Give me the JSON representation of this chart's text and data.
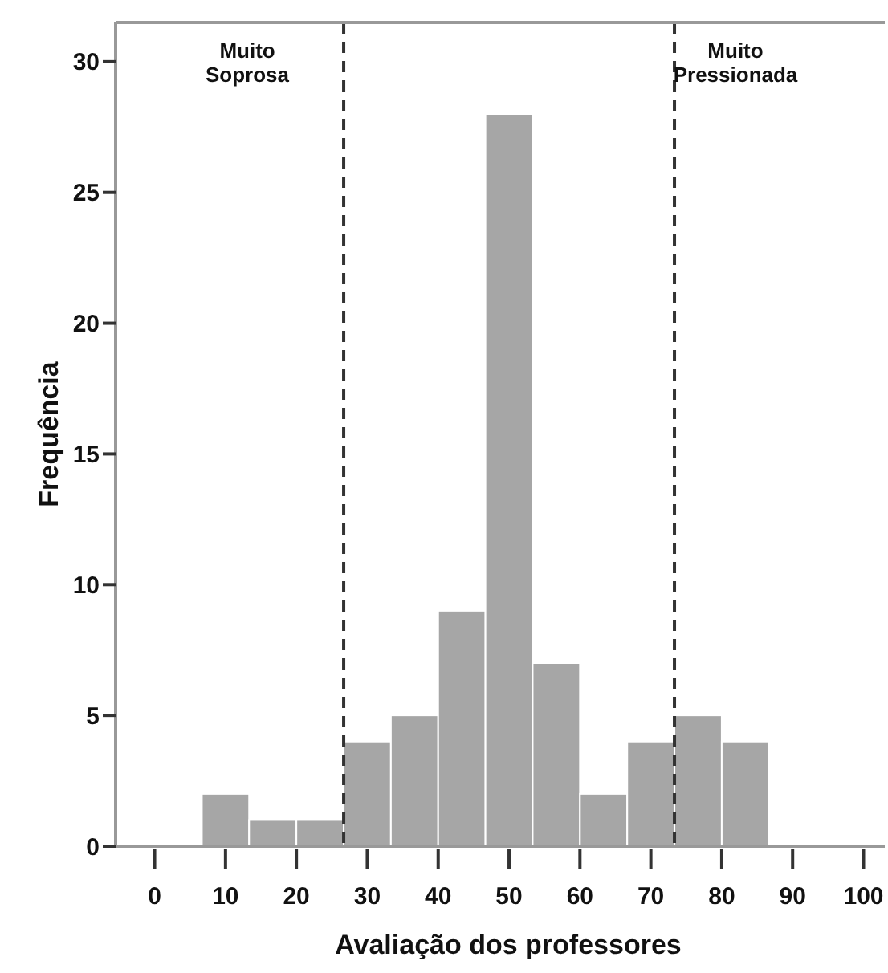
{
  "chart_data": {
    "type": "histogram",
    "xlabel": "Avaliação dos professores",
    "ylabel": "Frequência",
    "bins": [
      6.67,
      13.33,
      20,
      26.67,
      33.33,
      40,
      46.67,
      53.33,
      60,
      66.67,
      73.33,
      80,
      86.67
    ],
    "values": [
      2,
      1,
      1,
      4,
      5,
      9,
      28,
      7,
      2,
      4,
      5,
      4
    ],
    "color": "#a6a6a6",
    "xlim": [
      -5.5,
      103
    ],
    "xticks": [
      0,
      10,
      20,
      30,
      40,
      50,
      60,
      70,
      80,
      90,
      100
    ],
    "ylim": [
      0,
      31.5
    ],
    "yticks": [
      0,
      5,
      10,
      15,
      20,
      25,
      30
    ],
    "grid": false,
    "ref_lines": [
      {
        "axis": "x",
        "value": 26.67,
        "line_style": "dashed",
        "color": "#333333"
      },
      {
        "axis": "x",
        "value": 73.33,
        "line_style": "dashed",
        "color": "#333333"
      }
    ],
    "annotations": [
      "Muito Soprosa",
      "Muito Pressionada"
    ]
  }
}
